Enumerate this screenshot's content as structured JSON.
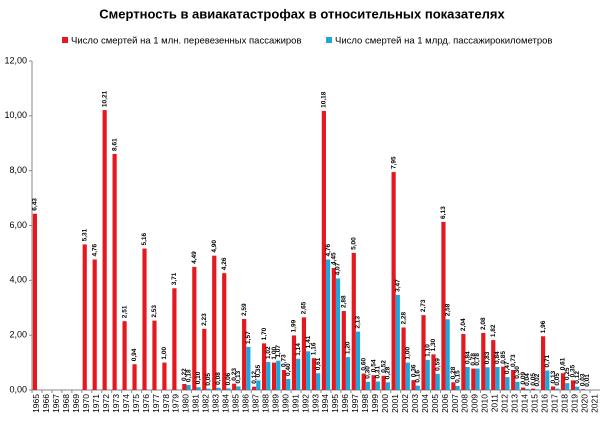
{
  "chart_data": {
    "type": "bar",
    "title": "Смертность в авиакатастрофах в относительных показателях",
    "categories": [
      "1965",
      "1966",
      "1967",
      "1968",
      "1969",
      "1970",
      "1971",
      "1972",
      "1973",
      "1974",
      "1975",
      "1976",
      "1977",
      "1978",
      "1979",
      "1980",
      "1981",
      "1982",
      "1983",
      "1984",
      "1985",
      "1986",
      "1987",
      "1988",
      "1989",
      "1990",
      "1991",
      "1992",
      "1993",
      "1994",
      "1995",
      "1996",
      "1997",
      "1998",
      "1999",
      "2000",
      "2001",
      "2002",
      "2003",
      "2004",
      "2005",
      "2006",
      "2007",
      "2008",
      "2009",
      "2010",
      "2011",
      "2012",
      "2013",
      "2014",
      "2015",
      "2016",
      "2017",
      "2018",
      "2019",
      "2020",
      "2021"
    ],
    "series": [
      {
        "name": "Число смертей на 1 млн. перевезенных пассажиров",
        "color": "#e3191f",
        "values": [
          6.43,
          null,
          null,
          null,
          null,
          5.31,
          4.76,
          10.21,
          8.61,
          2.51,
          0.94,
          5.16,
          2.53,
          1.0,
          3.71,
          0.22,
          4.49,
          2.23,
          4.9,
          4.26,
          0.23,
          2.59,
          0.12,
          1.7,
          1.0,
          0.73,
          1.99,
          2.65,
          1.16,
          10.18,
          4.45,
          2.88,
          5.0,
          0.6,
          0.54,
          0.52,
          7.95,
          2.28,
          0.36,
          2.73,
          1.3,
          6.13,
          0.28,
          2.04,
          0.78,
          2.08,
          1.82,
          0.85,
          0.73,
          0.09,
          0.05,
          1.96,
          0.13,
          0.61,
          0.35,
          0.03,
          null
        ],
        "value_labels": [
          "6,43",
          null,
          null,
          null,
          null,
          "5,31",
          "4,76",
          "10,21",
          "8,61",
          "2,51",
          "0,94",
          "5,16",
          "2,53",
          "1,00",
          "3,71",
          "0,22",
          "4,49",
          "2,23",
          "4,90",
          "4,26",
          "0,23",
          "2,59",
          "0,12",
          "1,70",
          "1,00",
          "0,73",
          "1,99",
          "2,65",
          "1,16",
          "10,18",
          "4,45",
          "2,88",
          "5,00",
          "0,60",
          "0,54",
          "0,52",
          "7,95",
          "2,28",
          "0,36",
          "2,73",
          "1,30",
          "6,13",
          "0,28",
          "2,04",
          "0,78",
          "2,08",
          "1,82",
          "0,85",
          "0,73",
          "0,09",
          "0,05",
          "1,96",
          "0,13",
          "0,61",
          "0,35",
          "0,03",
          null
        ]
      },
      {
        "name": "Число смертей на 1 млрд. пассажирокилометров",
        "color": "#1ea6df",
        "values": [
          null,
          null,
          null,
          null,
          null,
          null,
          null,
          null,
          null,
          null,
          null,
          null,
          null,
          null,
          null,
          0.18,
          0.1,
          0.05,
          0.08,
          0.06,
          0.13,
          1.57,
          0.35,
          1.02,
          1.07,
          0.4,
          1.14,
          1.41,
          0.61,
          4.76,
          4.07,
          1.2,
          2.13,
          0.3,
          0.31,
          0.28,
          3.47,
          1.0,
          0.16,
          1.1,
          0.59,
          2.58,
          0.15,
          0.84,
          0.78,
          0.83,
          0.84,
          0.47,
          0.3,
          0.04,
          0.02,
          0.71,
          0.05,
          0.25,
          0.12,
          0.01,
          null
        ],
        "value_labels": [
          null,
          null,
          null,
          null,
          null,
          null,
          null,
          null,
          null,
          null,
          null,
          null,
          null,
          null,
          null,
          "0,18",
          "0,10",
          "0,05",
          "0,08",
          "0,06",
          "0,13",
          "1,57",
          "0,35",
          "1,02",
          "1,07",
          "0,40",
          "1,14",
          "1,41",
          "0,61",
          "4,76",
          "4,07",
          "1,20",
          "2,13",
          "0,30",
          "0,31",
          "0,28",
          "3,47",
          "1,00",
          "0,16",
          "1,10",
          "0,59",
          "2,58",
          "0,15",
          "0,84",
          "0,78",
          "0,83",
          "0,84",
          "0,47",
          "0,30",
          "0,04",
          "0,02",
          "0,71",
          "0,05",
          "0,25",
          "0,12",
          "0,01",
          null
        ]
      }
    ],
    "ylim": [
      0,
      12
    ],
    "yticks": [
      {
        "value": 0,
        "label": "0,00"
      },
      {
        "value": 2,
        "label": "2,00"
      },
      {
        "value": 4,
        "label": "4,00"
      },
      {
        "value": 6,
        "label": "6,00"
      },
      {
        "value": 8,
        "label": "8,00"
      },
      {
        "value": 10,
        "label": "10,00"
      },
      {
        "value": 12,
        "label": "12,00"
      }
    ],
    "grid": false
  }
}
